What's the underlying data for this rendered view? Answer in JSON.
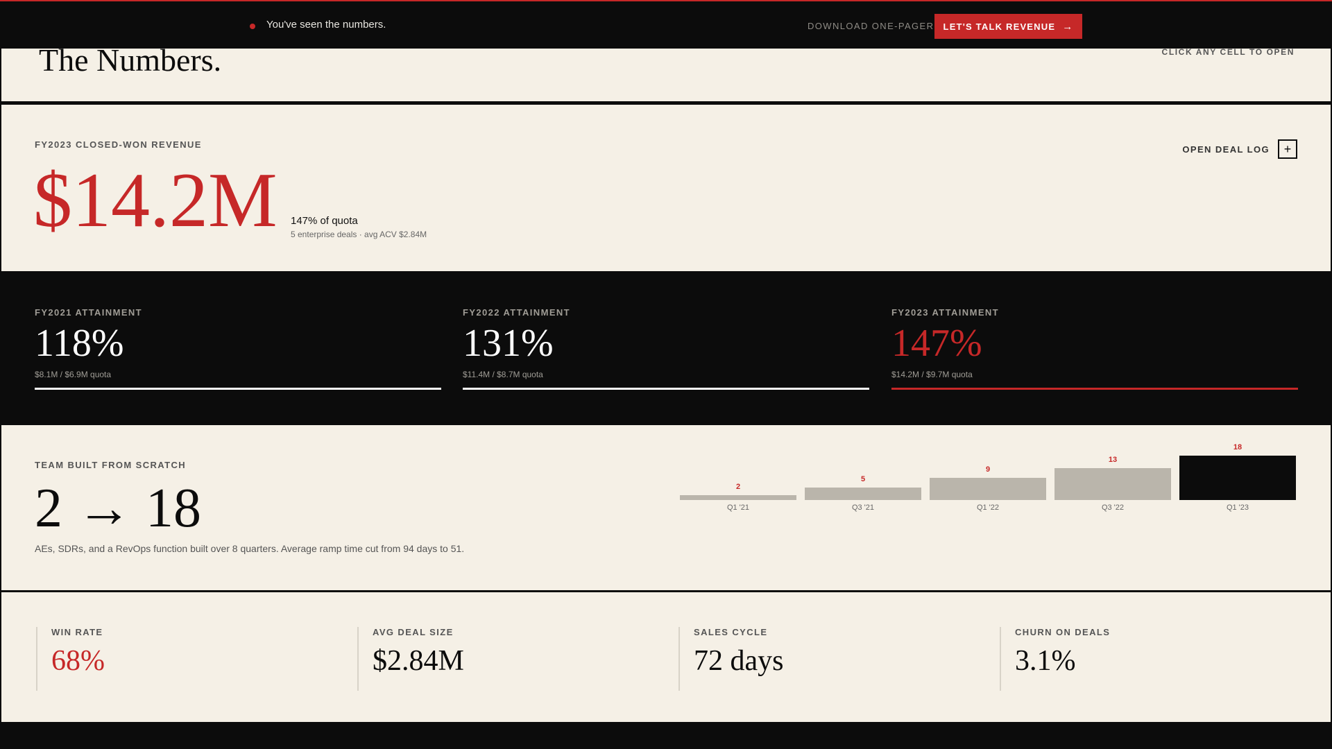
{
  "topbar": {
    "message": "You've seen the numbers.",
    "download_label": "DOWNLOAD ONE-PAGER",
    "cta_label": "LET'S TALK REVENUE",
    "accent_color": "#c62828"
  },
  "title_section": {
    "title": "The Numbers.",
    "hint": "CLICK ANY CELL TO OPEN"
  },
  "revenue": {
    "label": "FY2023 CLOSED-WON REVENUE",
    "value": "$14.2M",
    "quota_pct": "147% of quota",
    "detail": "5 enterprise deals · avg ACV $2.84M",
    "open_label": "OPEN DEAL LOG",
    "open_icon": "plus-icon"
  },
  "attainment": [
    {
      "label": "FY2021 ATTAINMENT",
      "value": "118%",
      "quota": "$8.1M / $6.9M quota"
    },
    {
      "label": "FY2022 ATTAINMENT",
      "value": "131%",
      "quota": "$11.4M / $8.7M quota"
    },
    {
      "label": "FY2023 ATTAINMENT",
      "value": "147%",
      "quota": "$14.2M / $9.7M quota"
    }
  ],
  "team": {
    "label": "TEAM BUILT FROM SCRATCH",
    "growth": "2 → 18",
    "description": "AEs, SDRs, and a RevOps function built over 8 quarters. Average ramp time cut from 94 days to 51."
  },
  "chart_data": {
    "type": "bar",
    "categories": [
      "Q1 '21",
      "Q3 '21",
      "Q1 '22",
      "Q3 '22",
      "Q1 '23"
    ],
    "values": [
      2,
      5,
      9,
      13,
      18
    ],
    "highlight_index": 4,
    "title": "",
    "xlabel": "",
    "ylabel": "",
    "ylim": [
      0,
      18
    ]
  },
  "metrics": [
    {
      "label": "WIN RATE",
      "value": "68%"
    },
    {
      "label": "AVG DEAL SIZE",
      "value": "$2.84M"
    },
    {
      "label": "SALES CYCLE",
      "value": "72 days"
    },
    {
      "label": "CHURN ON DEALS",
      "value": "3.1%"
    }
  ]
}
